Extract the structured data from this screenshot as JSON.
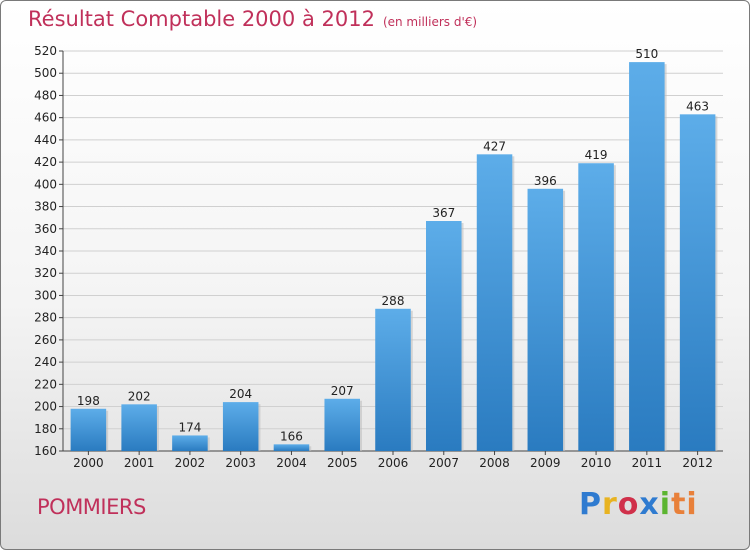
{
  "header": {
    "title": "Résultat Comptable 2000 à 2012",
    "subtitle": "(en milliers d'€)"
  },
  "footer": {
    "commune": "POMMIERS",
    "brand_letters": [
      "P",
      "r",
      "o",
      "x",
      "i",
      "ti"
    ]
  },
  "colors": {
    "title": "#c0305a",
    "bar_top": "#5dade9",
    "bar_bottom": "#2a7bc0",
    "grid": "#d0d0d0"
  },
  "chart_data": {
    "type": "bar",
    "title": "Résultat Comptable 2000 à 2012",
    "subtitle": "(en milliers d'€)",
    "xlabel": "",
    "ylabel": "",
    "categories": [
      "2000",
      "2001",
      "2002",
      "2003",
      "2004",
      "2005",
      "2006",
      "2007",
      "2008",
      "2009",
      "2010",
      "2011",
      "2012"
    ],
    "values": [
      198,
      202,
      174,
      204,
      166,
      207,
      288,
      367,
      427,
      396,
      419,
      510,
      463
    ],
    "ylim": [
      160,
      520
    ],
    "yticks": [
      160,
      180,
      200,
      220,
      240,
      260,
      280,
      300,
      320,
      340,
      360,
      380,
      400,
      420,
      440,
      460,
      480,
      500,
      520
    ],
    "grid": true,
    "data_labels": true
  }
}
